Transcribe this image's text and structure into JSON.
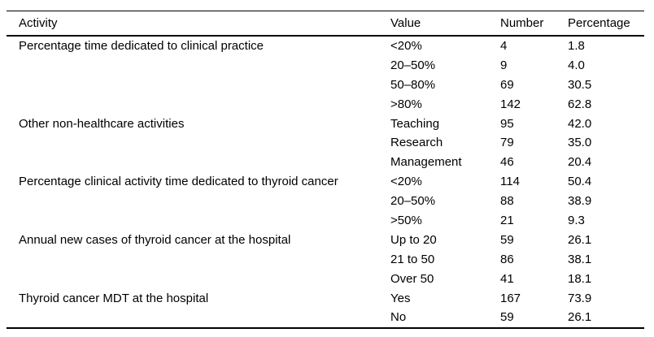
{
  "page": {
    "background": "#ffffff",
    "text_color": "#000000",
    "rule_color": "#000000"
  },
  "table": {
    "columns": [
      "Activity",
      "Value",
      "Number",
      "Percentage"
    ],
    "groups": [
      {
        "activity": "Percentage time dedicated to clinical practice",
        "rows": [
          {
            "value": "<20%",
            "number": "4",
            "percentage": "1.8"
          },
          {
            "value": "20–50%",
            "number": "9",
            "percentage": "4.0"
          },
          {
            "value": "50–80%",
            "number": "69",
            "percentage": "30.5"
          },
          {
            "value": ">80%",
            "number": "142",
            "percentage": "62.8"
          }
        ]
      },
      {
        "activity": "Other non-healthcare activities",
        "rows": [
          {
            "value": "Teaching",
            "number": "95",
            "percentage": "42.0"
          },
          {
            "value": "Research",
            "number": "79",
            "percentage": "35.0"
          },
          {
            "value": "Management",
            "number": "46",
            "percentage": "20.4"
          }
        ]
      },
      {
        "activity": "Percentage clinical activity time dedicated to thyroid cancer",
        "rows": [
          {
            "value": "<20%",
            "number": "114",
            "percentage": "50.4"
          },
          {
            "value": "20–50%",
            "number": "88",
            "percentage": "38.9"
          },
          {
            "value": ">50%",
            "number": "21",
            "percentage": "9.3"
          }
        ]
      },
      {
        "activity": "Annual new cases of thyroid cancer at the hospital",
        "rows": [
          {
            "value": "Up to 20",
            "number": "59",
            "percentage": "26.1"
          },
          {
            "value": "21 to 50",
            "number": "86",
            "percentage": "38.1"
          },
          {
            "value": "Over 50",
            "number": "41",
            "percentage": "18.1"
          }
        ]
      },
      {
        "activity": "Thyroid cancer MDT at the hospital",
        "rows": [
          {
            "value": "Yes",
            "number": "167",
            "percentage": "73.9"
          },
          {
            "value": "No",
            "number": "59",
            "percentage": "26.1"
          }
        ]
      }
    ]
  }
}
